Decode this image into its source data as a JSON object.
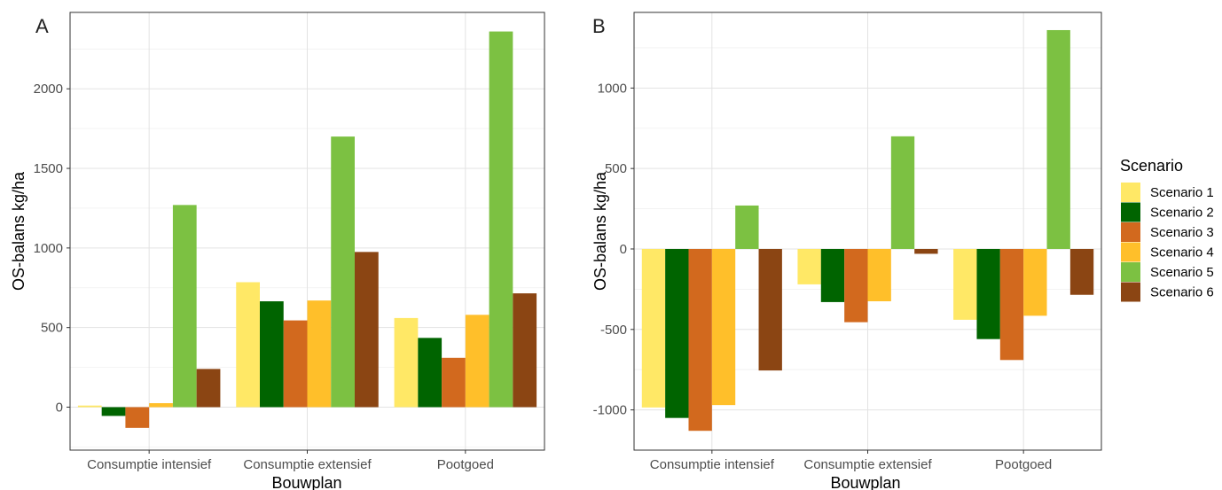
{
  "chart_data": [
    {
      "type": "bar",
      "panel_tag": "A",
      "categories": [
        "Consumptie intensief",
        "Consumptie extensief",
        "Pootgoed"
      ],
      "series": [
        {
          "name": "Scenario 1",
          "values": [
            10,
            785,
            560
          ]
        },
        {
          "name": "Scenario 2",
          "values": [
            -55,
            665,
            435
          ]
        },
        {
          "name": "Scenario 3",
          "values": [
            -130,
            545,
            310
          ]
        },
        {
          "name": "Scenario 4",
          "values": [
            25,
            670,
            580
          ]
        },
        {
          "name": "Scenario 5",
          "values": [
            1270,
            1700,
            2360
          ]
        },
        {
          "name": "Scenario 6",
          "values": [
            240,
            975,
            715
          ]
        }
      ],
      "xlabel": "Bouwplan",
      "ylabel": "OS-balans kg/ha",
      "ylim": [
        -270,
        2480
      ],
      "yticks": [
        0,
        500,
        1000,
        1500,
        2000
      ],
      "ytick_labels": [
        "0",
        "500",
        "1000",
        "1500",
        "2000"
      ],
      "grid": true
    },
    {
      "type": "bar",
      "panel_tag": "B",
      "categories": [
        "Consumptie intensief",
        "Consumptie extensief",
        "Pootgoed"
      ],
      "series": [
        {
          "name": "Scenario 1",
          "values": [
            -985,
            -220,
            -440
          ]
        },
        {
          "name": "Scenario 2",
          "values": [
            -1050,
            -330,
            -560
          ]
        },
        {
          "name": "Scenario 3",
          "values": [
            -1130,
            -455,
            -690
          ]
        },
        {
          "name": "Scenario 4",
          "values": [
            -970,
            -325,
            -415
          ]
        },
        {
          "name": "Scenario 5",
          "values": [
            270,
            700,
            1360
          ]
        },
        {
          "name": "Scenario 6",
          "values": [
            -755,
            -30,
            -285
          ]
        }
      ],
      "xlabel": "Bouwplan",
      "ylabel": "OS-balans kg/ha",
      "ylim": [
        -1250,
        1470
      ],
      "yticks": [
        -1000,
        -500,
        0,
        500,
        1000
      ],
      "ytick_labels": [
        "-1000",
        "-500",
        "0",
        "500",
        "1000"
      ],
      "grid": true
    }
  ],
  "legend": {
    "title": "Scenario",
    "placement": "right",
    "items": [
      {
        "label": "Scenario 1",
        "color": "#FFE866"
      },
      {
        "label": "Scenario 2",
        "color": "#006400"
      },
      {
        "label": "Scenario 3",
        "color": "#D2691E"
      },
      {
        "label": "Scenario 4",
        "color": "#FFBF2A"
      },
      {
        "label": "Scenario 5",
        "color": "#7CC142"
      },
      {
        "label": "Scenario 6",
        "color": "#8B4513"
      }
    ]
  }
}
